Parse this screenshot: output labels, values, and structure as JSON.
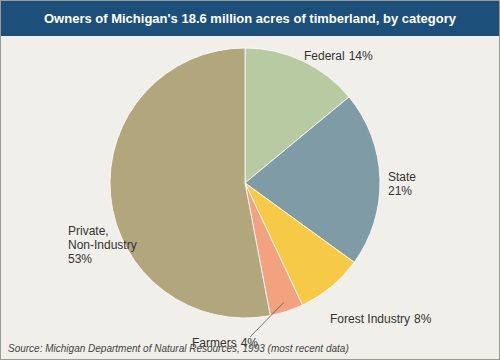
{
  "chart_data": {
    "type": "pie",
    "title": "Owners of Michigan's 18.6 million acres of timberland, by category",
    "categories": [
      "Federal",
      "State",
      "Forest Industry",
      "Farmers",
      "Private, Non-Industry"
    ],
    "values": [
      14,
      21,
      8,
      4,
      53
    ],
    "value_labels": [
      "14%",
      "21%",
      "8%",
      "4%",
      "53%"
    ],
    "colors": [
      "#b7caa1",
      "#7f9ca6",
      "#f6c947",
      "#f2a27e",
      "#b2a67c"
    ],
    "data_labels": true,
    "source": "Source: Michigan Department of Natural Resources, 1993 (most recent data)"
  }
}
